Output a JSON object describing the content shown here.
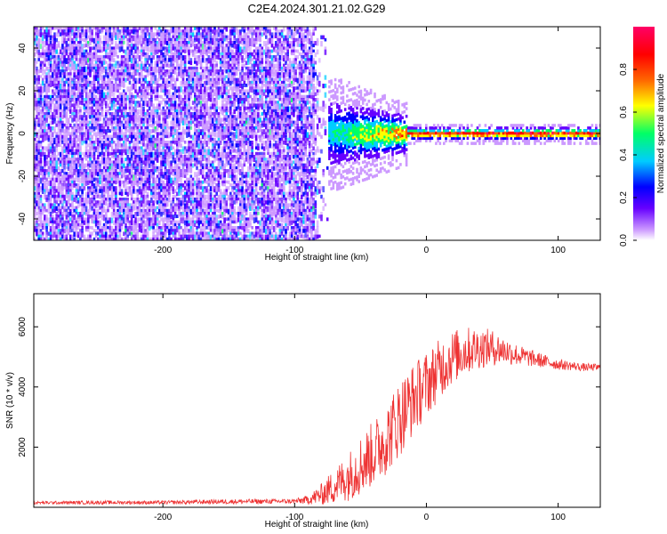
{
  "title": "C2E4.2024.301.21.02.G29",
  "chart_data": [
    {
      "type": "heatmap",
      "xlabel": "Height of straight line (km)",
      "ylabel": "Frequency (Hz)",
      "xlim": [
        -298,
        132
      ],
      "ylim": [
        -50,
        50
      ],
      "xticks": [
        -200,
        -100,
        0,
        100
      ],
      "yticks": [
        -40,
        -20,
        0,
        20,
        40
      ],
      "colorbar": {
        "label": "Normalized spectral amplitude",
        "range": [
          0,
          1
        ],
        "ticks": [
          0.0,
          0.2,
          0.4,
          0.6,
          0.8
        ],
        "tick_labels": [
          "0.0",
          "0.2",
          "0.4",
          "0.6",
          "0.8"
        ],
        "colormap": [
          "#ffffff",
          "#cc99ff",
          "#6600ff",
          "#0000ff",
          "#00ccff",
          "#00ff66",
          "#ffff00",
          "#ff6600",
          "#ff0000",
          "#ff0066"
        ]
      },
      "signal": {
        "noise_region_end_km": -85,
        "transition_end_km": -15,
        "center_frequency_hz": 0
      },
      "grid": false
    },
    {
      "type": "line",
      "xlabel": "Height of straight line (km)",
      "ylabel": "SNR (10 * v/v)",
      "xlim": [
        -298,
        132
      ],
      "ylim": [
        0,
        7100
      ],
      "xticks": [
        -200,
        -100,
        0,
        100
      ],
      "yticks": [
        2000,
        4000,
        6000
      ],
      "series": [
        {
          "color": "#ee3333",
          "x": [
            -298,
            -250,
            -200,
            -150,
            -100,
            -90,
            -80,
            -70,
            -60,
            -50,
            -40,
            -30,
            -20,
            -10,
            0,
            10,
            20,
            30,
            40,
            50,
            60,
            70,
            80,
            90,
            100,
            110,
            120,
            132
          ],
          "y": [
            150,
            160,
            160,
            190,
            200,
            250,
            420,
            700,
            1000,
            1400,
            1800,
            2300,
            3000,
            3600,
            4100,
            4600,
            5000,
            5200,
            5300,
            5300,
            5200,
            5050,
            4950,
            4850,
            4750,
            4700,
            4650,
            4650
          ],
          "noise_amplitude": [
            50,
            60,
            60,
            80,
            80,
            150,
            350,
            600,
            800,
            1000,
            1100,
            1200,
            1300,
            1200,
            1100,
            1000,
            900,
            800,
            700,
            600,
            450,
            350,
            280,
            220,
            180,
            150,
            130,
            120
          ]
        }
      ],
      "grid": false
    }
  ]
}
